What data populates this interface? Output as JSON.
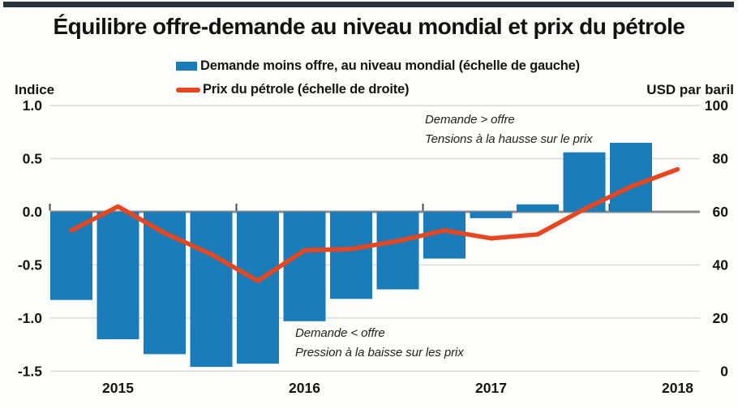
{
  "header": {
    "title": "Équilibre offre-demande au niveau mondial et prix du pétrole"
  },
  "legend": {
    "items": [
      {
        "swatch": "bar-swatch",
        "label": "Demande moins offre, au niveau mondial (échelle de gauche)"
      },
      {
        "swatch": "line-swatch",
        "label": "Prix du pétrole (échelle de droite)"
      }
    ]
  },
  "axes": {
    "left_title": "Indice",
    "right_title": "USD par baril",
    "left_ticks": [
      "1.0",
      "0.5",
      "0.0",
      "-0.5",
      "-1.0",
      "-1.5"
    ],
    "right_ticks": [
      "100",
      "80",
      "60",
      "40",
      "20",
      "0"
    ],
    "x_labels": [
      "2015",
      "2016",
      "2017",
      "2018"
    ]
  },
  "annotations": {
    "above_line1": "Demande > offre",
    "above_line2": "Tensions à la hausse sur le prix",
    "below_line1": "Demande < offre",
    "below_line2": "Pression à la baisse sur les prix"
  },
  "colors": {
    "bar": "#1a7cb8",
    "line": "#e8461f",
    "zero_axis": "#8c8c8c",
    "gridline": "#d9d9d6",
    "tick_mark": "#4a4a4a",
    "top_strip": "#27323c",
    "text": "#151515"
  },
  "chart_data": {
    "type": "bar",
    "subtype": "combo-bar-line-dual-axis",
    "title": "Équilibre offre-demande au niveau mondial et prix du pétrole",
    "x": [
      "2014Q4",
      "2015Q1",
      "2015Q2",
      "2015Q3",
      "2015Q4",
      "2016Q1",
      "2016Q2",
      "2016Q3",
      "2016Q4",
      "2017Q1",
      "2017Q2",
      "2017Q3",
      "2017Q4",
      "2018Q1"
    ],
    "series": [
      {
        "name": "Demande moins offre, au niveau mondial (échelle de gauche)",
        "type": "bar",
        "axis": "left",
        "values": [
          -0.83,
          -1.2,
          -1.34,
          -1.46,
          -1.43,
          -1.03,
          -0.82,
          -0.73,
          -0.44,
          -0.06,
          0.07,
          0.56,
          0.65,
          null
        ]
      },
      {
        "name": "Prix du pétrole (échelle de droite)",
        "type": "line",
        "axis": "right",
        "values": [
          53,
          62,
          52,
          44,
          34,
          45.5,
          46,
          49,
          53,
          50,
          51.5,
          61,
          69.5,
          76
        ]
      }
    ],
    "left_axis": {
      "label": "Indice",
      "ticks": [
        1.0,
        0.5,
        0.0,
        -0.5,
        -1.0,
        -1.5
      ],
      "ylim": [
        -1.5,
        1.0
      ]
    },
    "right_axis": {
      "label": "USD par baril",
      "ticks": [
        100,
        80,
        60,
        40,
        20,
        0
      ],
      "ylim": [
        0,
        100
      ]
    },
    "xlabel": "",
    "grid": "horizontal",
    "legend_position": "top-center",
    "annotations": [
      "Demande > offre — Tensions à la hausse sur le prix",
      "Demande < offre — Pression à la baisse sur les prix"
    ]
  }
}
